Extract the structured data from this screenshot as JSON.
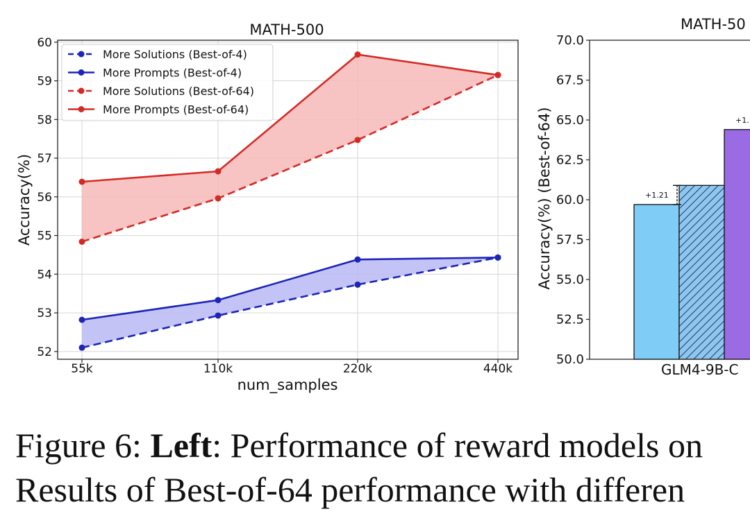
{
  "colors": {
    "red": "#d42a24",
    "red_fill": "#f6b9b9",
    "blue": "#1d24b8",
    "blue_fill": "#b9baf3",
    "bar_light_blue": "#7fcdf6",
    "bar_hatched": "#8fc6ef",
    "bar_purple": "#9a6be3"
  },
  "chart_data": [
    {
      "type": "line",
      "title": "MATH-500",
      "xlabel": "num_samples",
      "ylabel": "Accuracy(%)",
      "categories": [
        "55k",
        "110k",
        "220k",
        "440k"
      ],
      "ylim": [
        51.8,
        60.05
      ],
      "yticks": [
        "52",
        "53",
        "54",
        "55",
        "56",
        "57",
        "58",
        "59",
        "60"
      ],
      "grid": true,
      "legend_position": "upper-left",
      "series": [
        {
          "name": "More Solutions (Best-of-4)",
          "color": "blue",
          "style": "dashed",
          "values": [
            52.1,
            52.93,
            53.73,
            54.43
          ]
        },
        {
          "name": "More Prompts (Best-of-4)",
          "color": "blue",
          "style": "solid",
          "values": [
            52.82,
            53.33,
            54.38,
            54.43
          ]
        },
        {
          "name": "More Solutions (Best-of-64)",
          "color": "red",
          "style": "dashed",
          "values": [
            54.84,
            55.96,
            57.47,
            59.15
          ]
        },
        {
          "name": "More Prompts (Best-of-64)",
          "color": "red",
          "style": "solid",
          "values": [
            56.39,
            56.66,
            59.68,
            59.15
          ]
        }
      ]
    },
    {
      "type": "bar",
      "title": "MATH-50",
      "ylabel": "Accuracy(%) (Best-of-64)",
      "ylim": [
        50.0,
        70.0
      ],
      "yticks": [
        "50.0",
        "52.5",
        "55.0",
        "57.5",
        "60.0",
        "62.5",
        "65.0",
        "67.5",
        "70.0"
      ],
      "category_label": "GLM4-9B-C",
      "bars": [
        {
          "value": 59.7,
          "style": "solid",
          "color": "bar_light_blue",
          "annotation": "+1.21"
        },
        {
          "value": 60.9,
          "style": "hatched",
          "color": "bar_hatched",
          "annotation": ""
        },
        {
          "value": 64.4,
          "style": "solid",
          "color": "bar_purple",
          "annotation": "+1."
        }
      ]
    }
  ],
  "caption": {
    "line1_prefix": "Figure 6: ",
    "line1_bold": "Left",
    "line1_rest": ": Performance of reward models on",
    "line2": "Results of Best-of-64 performance with differen"
  }
}
